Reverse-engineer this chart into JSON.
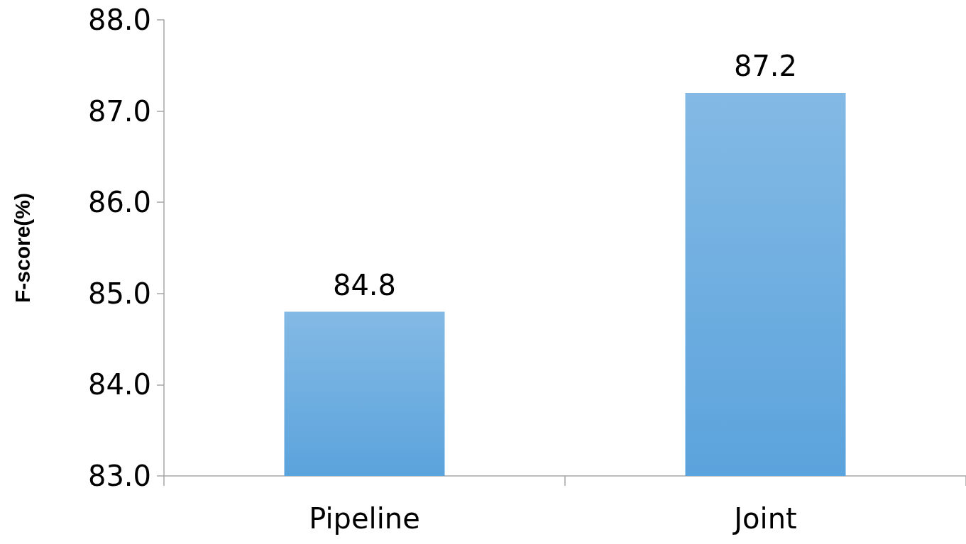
{
  "chart_data": {
    "type": "bar",
    "ylabel": "F-score(%)",
    "categories": [
      "Pipeline",
      "Joint"
    ],
    "values": [
      84.8,
      87.2
    ],
    "color": "#5ba3dc",
    "ylim": [
      83,
      88
    ],
    "yticks": [
      {
        "value": 83,
        "label": "83.0"
      },
      {
        "value": 84,
        "label": "84.0"
      },
      {
        "value": 85,
        "label": "85.0"
      },
      {
        "value": 86,
        "label": "86.0"
      },
      {
        "value": 87,
        "label": "87.0"
      },
      {
        "value": 88,
        "label": "88.0"
      }
    ],
    "grid": false,
    "data_labels": true
  }
}
